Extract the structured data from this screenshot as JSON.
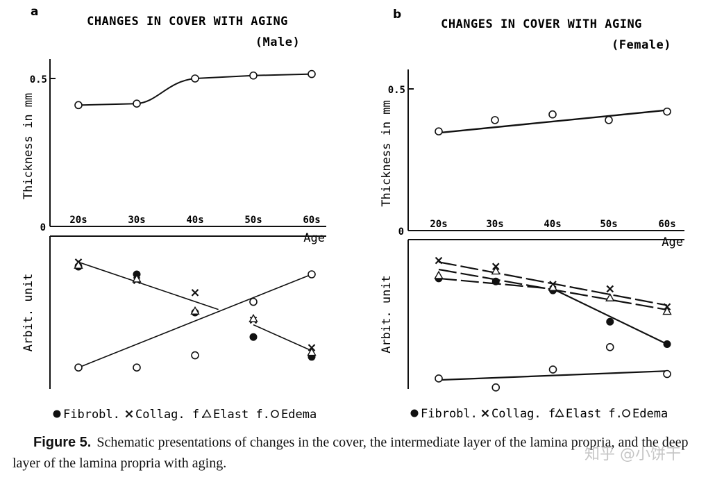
{
  "chart_data": [
    {
      "panel": "a",
      "type": "line",
      "title": "CHANGES IN COVER WITH AGING",
      "subtitle": "(Male)",
      "top": {
        "ylabel": "Thickness in mm",
        "ytick_labels": [
          "0",
          "0.5"
        ],
        "ylim": [
          0,
          0.55
        ],
        "categories": [
          "20s",
          "30s",
          "40s",
          "50s",
          "60s"
        ],
        "xlabel": "Age",
        "series": [
          {
            "symbol": "open-circle",
            "values": [
              0.41,
              0.415,
              0.5,
              0.51,
              0.515
            ]
          }
        ]
      },
      "bottom": {
        "ylabel": "Arbit. unit",
        "categories": [
          "20s",
          "30s",
          "40s",
          "50s",
          "60s"
        ],
        "ylim": [
          0,
          1
        ],
        "series": [
          {
            "name": "Fibrobl.",
            "symbol": "filled-circle",
            "values": [
              0.8,
              0.75,
              0.5,
              0.34,
              0.21
            ]
          },
          {
            "name": "Collag. f.",
            "symbol": "cross",
            "values": [
              0.83,
              0.71,
              0.63,
              0.45,
              0.27
            ]
          },
          {
            "name": "Elast f.",
            "symbol": "triangle",
            "values": [
              0.81,
              0.72,
              0.51,
              0.46,
              0.24
            ]
          },
          {
            "name": "Edema",
            "symbol": "open-circle",
            "values": [
              0.14,
              0.14,
              0.22,
              0.57,
              0.75
            ]
          }
        ],
        "lines": [
          {
            "kind": "fit",
            "from": [
              0,
              0.83
            ],
            "to": [
              2.4,
              0.52
            ]
          },
          {
            "kind": "fit",
            "from": [
              3,
              0.42
            ],
            "to": [
              4,
              0.25
            ]
          },
          {
            "kind": "fit",
            "from": [
              0,
              0.14
            ],
            "to": [
              4,
              0.75
            ]
          }
        ]
      },
      "legend": [
        "Fibrobl.",
        "Collag. f.",
        "Elast f.",
        "Edema"
      ]
    },
    {
      "panel": "b",
      "type": "line",
      "title": "CHANGES IN COVER WITH AGING",
      "subtitle": "(Female)",
      "top": {
        "ylabel": "Thickness in mm",
        "ytick_labels": [
          "0",
          "0.5"
        ],
        "ylim": [
          0,
          0.55
        ],
        "categories": [
          "20s",
          "30s",
          "40s",
          "50s",
          "60s"
        ],
        "xlabel": "Age",
        "series": [
          {
            "symbol": "open-circle",
            "values": [
              0.35,
              0.39,
              0.41,
              0.39,
              0.42
            ]
          }
        ]
      },
      "bottom": {
        "ylabel": "Arbit. unit",
        "categories": [
          "20s",
          "30s",
          "40s",
          "50s",
          "60s"
        ],
        "ylim": [
          0,
          1
        ],
        "series": [
          {
            "name": "Fibrobl.",
            "symbol": "filled-circle",
            "values": [
              0.74,
              0.72,
              0.66,
              0.45,
              0.3
            ]
          },
          {
            "name": "Collag. f.",
            "symbol": "cross",
            "values": [
              0.86,
              0.82,
              0.7,
              0.67,
              0.55
            ]
          },
          {
            "name": "Elast f.",
            "symbol": "triangle",
            "values": [
              0.76,
              0.79,
              0.68,
              0.61,
              0.52
            ]
          },
          {
            "name": "Edema",
            "symbol": "open-circle",
            "values": [
              0.07,
              0.01,
              0.13,
              0.28,
              0.1
            ]
          }
        ],
        "lines": [
          {
            "kind": "dash",
            "from": [
              0,
              0.85
            ],
            "to": [
              4,
              0.56
            ]
          },
          {
            "kind": "dash",
            "from": [
              0,
              0.8
            ],
            "to": [
              4,
              0.53
            ]
          },
          {
            "kind": "dash",
            "from": [
              0,
              0.74
            ],
            "to": [
              2,
              0.67
            ]
          },
          {
            "kind": "solid",
            "from": [
              2,
              0.67
            ],
            "to": [
              4,
              0.3
            ]
          },
          {
            "kind": "solid",
            "from": [
              0,
              0.06
            ],
            "to": [
              4,
              0.12
            ]
          }
        ]
      },
      "legend": [
        "Fibrobl.",
        "Collag. f.",
        "Elast f.",
        "Edema"
      ]
    }
  ],
  "caption": {
    "label": "Figure 5.",
    "text": "Schematic presentations of changes in the cover, the intermediate layer of the lamina propria, and the deep layer of the lamina propria with aging."
  },
  "watermark": "知乎 @小饼干"
}
